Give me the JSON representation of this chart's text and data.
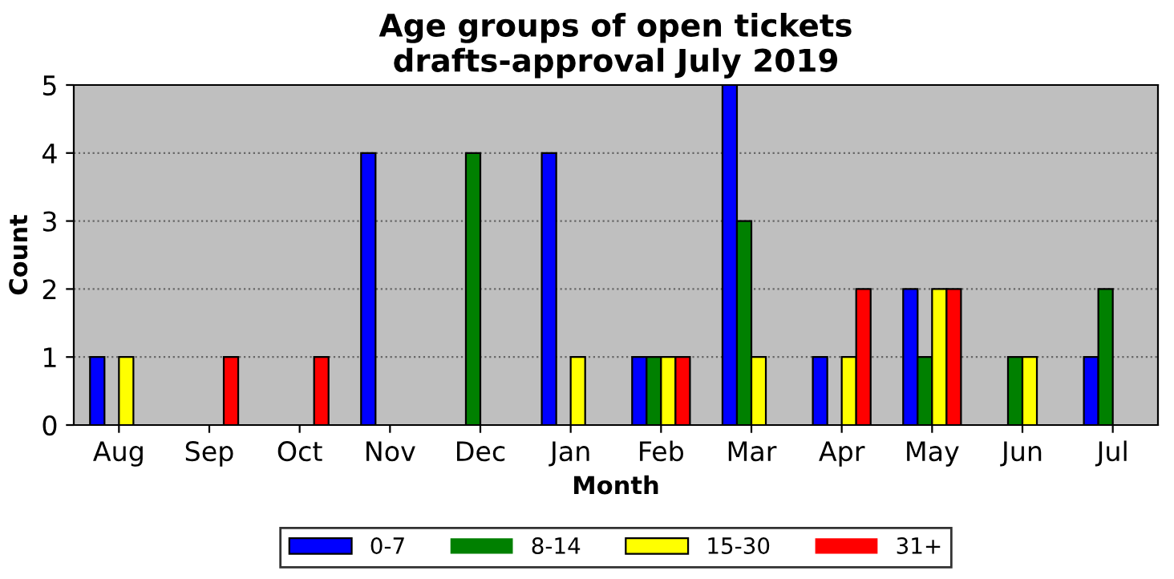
{
  "chart_data": {
    "type": "bar",
    "title": "Age groups of open tickets\ndrafts-approval July 2019",
    "xlabel": "Month",
    "ylabel": "Count",
    "categories": [
      "Aug",
      "Sep",
      "Oct",
      "Nov",
      "Dec",
      "Jan",
      "Feb",
      "Mar",
      "Apr",
      "May",
      "Jun",
      "Jul"
    ],
    "series": [
      {
        "name": "0-7",
        "color": "#0000ff",
        "values": [
          1,
          0,
          0,
          4,
          0,
          4,
          1,
          5,
          1,
          2,
          0,
          1
        ]
      },
      {
        "name": "8-14",
        "color": "#008000",
        "values": [
          0,
          0,
          0,
          0,
          4,
          0,
          1,
          3,
          0,
          1,
          1,
          2
        ]
      },
      {
        "name": "15-30",
        "color": "#ffff00",
        "values": [
          1,
          0,
          0,
          0,
          0,
          1,
          1,
          1,
          1,
          2,
          1,
          0
        ]
      },
      {
        "name": "31+",
        "color": "#ff0000",
        "values": [
          0,
          1,
          1,
          0,
          0,
          0,
          1,
          0,
          2,
          2,
          0,
          0
        ]
      }
    ],
    "ylim": [
      0,
      5
    ],
    "yticks": [
      0,
      1,
      2,
      3,
      4,
      5
    ],
    "grid": "y",
    "legend": "bottom"
  }
}
